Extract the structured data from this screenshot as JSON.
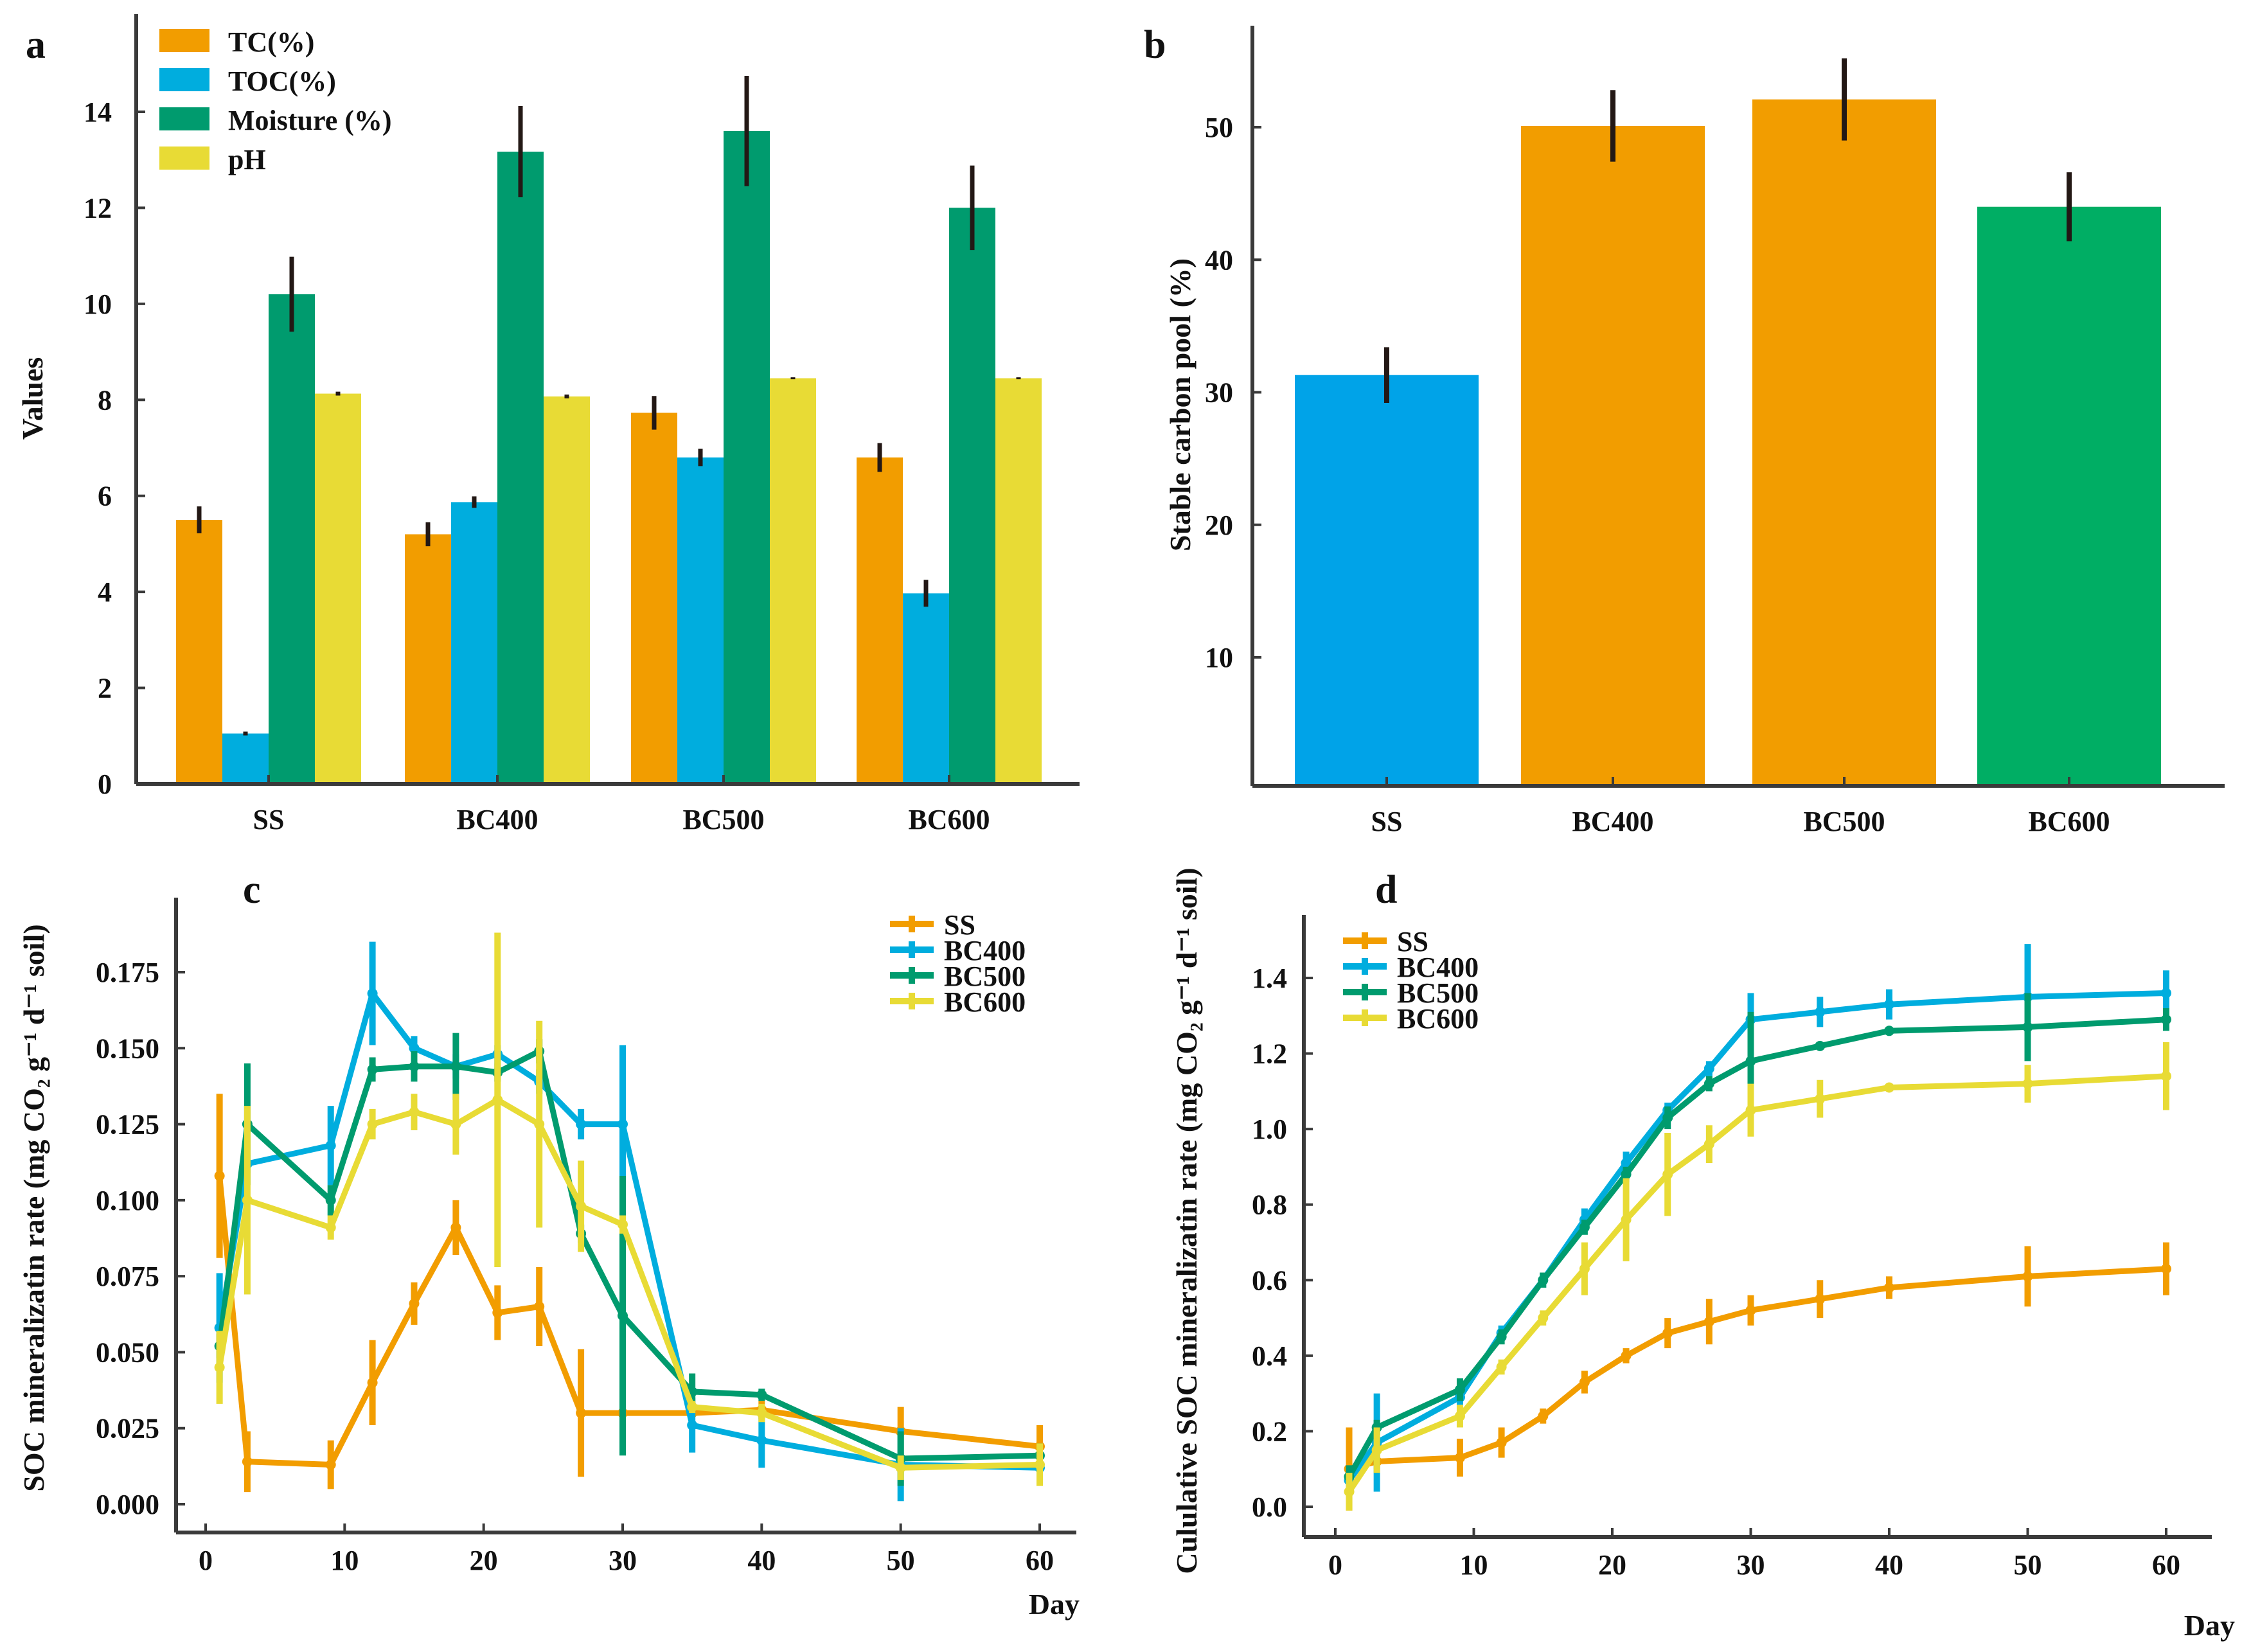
{
  "chart_data": [
    {
      "id": "a",
      "type": "bar",
      "panel_label": "a",
      "title": "",
      "xlabel": "",
      "ylabel": "Values",
      "ylim": [
        0,
        15.5
      ],
      "yticks": [
        0,
        2,
        4,
        6,
        8,
        10,
        12,
        14
      ],
      "categories": [
        "SS",
        "BC400",
        "BC500",
        "BC600"
      ],
      "legend_position": "top-left",
      "series": [
        {
          "name": "TC(%)",
          "color": "#F29D00",
          "values": [
            5.5,
            5.2,
            7.73,
            6.8
          ],
          "errors": [
            0.28,
            0.25,
            0.35,
            0.3
          ]
        },
        {
          "name": "TOC(%)",
          "color": "#00ADDE",
          "values": [
            1.05,
            5.87,
            6.8,
            3.97
          ],
          "errors": [
            0.04,
            0.12,
            0.18,
            0.28
          ]
        },
        {
          "name": "Moisture (%)",
          "color": "#009B6E",
          "values": [
            10.2,
            13.17,
            13.6,
            12.0
          ],
          "errors": [
            0.78,
            0.95,
            1.15,
            0.88
          ]
        },
        {
          "name": "pH",
          "color": "#E8DB35",
          "values": [
            8.13,
            8.07,
            8.45,
            8.45
          ],
          "errors": [
            0.04,
            0.04,
            0.02,
            0.02
          ]
        }
      ]
    },
    {
      "id": "b",
      "type": "bar",
      "panel_label": "b",
      "title": "",
      "xlabel": "",
      "ylabel": "Stable carbon pool (%)",
      "ylim": [
        0,
        57
      ],
      "yticks": [
        10,
        20,
        30,
        40,
        50
      ],
      "categories": [
        "SS",
        "BC400",
        "BC500",
        "BC600"
      ],
      "values": [
        31.3,
        50.1,
        52.1,
        44.0
      ],
      "errors": [
        2.1,
        2.7,
        3.1,
        2.6
      ],
      "colors": [
        "#00A3E8",
        "#F29D00",
        "#F29D00",
        "#00AE64"
      ]
    },
    {
      "id": "c",
      "type": "line",
      "panel_label": "c",
      "title": "",
      "xlabel": "Day",
      "ylabel": "SOC mineralizatin rate (mg CO₂ g⁻¹ d⁻¹ soil)",
      "xlim": [
        -1.5,
        63
      ],
      "ylim": [
        -0.009,
        0.197
      ],
      "xticks": [
        0,
        10,
        20,
        30,
        40,
        50,
        60
      ],
      "yticks": [
        0.0,
        0.025,
        0.05,
        0.075,
        0.1,
        0.125,
        0.15,
        0.175
      ],
      "ytick_labels": [
        "0.000",
        "0.025",
        "0.050",
        "0.075",
        "0.100",
        "0.125",
        "0.150",
        "0.175"
      ],
      "legend_position": "top-right",
      "x": [
        1,
        3,
        9,
        12,
        15,
        18,
        21,
        24,
        27,
        30,
        35,
        40,
        50,
        60
      ],
      "series": [
        {
          "name": "SS",
          "color": "#F29D00",
          "values": [
            0.108,
            0.014,
            0.013,
            0.04,
            0.066,
            0.091,
            0.063,
            0.065,
            0.03,
            0.03,
            0.03,
            0.031,
            0.024,
            0.019
          ],
          "errors": [
            0.027,
            0.01,
            0.008,
            0.014,
            0.007,
            0.009,
            0.009,
            0.013,
            0.021,
            0.0,
            0.001,
            0.003,
            0.008,
            0.007
          ]
        },
        {
          "name": "BC400",
          "color": "#00ADDE",
          "values": [
            0.058,
            0.112,
            0.118,
            0.168,
            0.15,
            0.144,
            0.148,
            0.139,
            0.125,
            0.125,
            0.026,
            0.021,
            0.013,
            0.012
          ],
          "errors": [
            0.018,
            0.003,
            0.013,
            0.017,
            0.004,
            0.004,
            0.003,
            0.004,
            0.005,
            0.026,
            0.009,
            0.009,
            0.012,
            0.003
          ]
        },
        {
          "name": "BC500",
          "color": "#009B6E",
          "values": [
            0.052,
            0.125,
            0.1,
            0.143,
            0.144,
            0.144,
            0.142,
            0.149,
            0.089,
            0.062,
            0.037,
            0.036,
            0.015,
            0.016
          ],
          "errors": [
            0.004,
            0.02,
            0.005,
            0.004,
            0.005,
            0.011,
            0.003,
            0.004,
            0.003,
            0.046,
            0.006,
            0.002,
            0.009,
            0.004
          ]
        },
        {
          "name": "BC600",
          "color": "#E8DB35",
          "values": [
            0.045,
            0.1,
            0.091,
            0.125,
            0.129,
            0.125,
            0.133,
            0.125,
            0.098,
            0.092,
            0.032,
            0.03,
            0.012,
            0.013
          ],
          "errors": [
            0.012,
            0.031,
            0.004,
            0.005,
            0.006,
            0.01,
            0.055,
            0.034,
            0.015,
            0.003,
            0.002,
            0.003,
            0.004,
            0.007
          ]
        }
      ]
    },
    {
      "id": "d",
      "type": "line",
      "panel_label": "d",
      "title": "",
      "xlabel": "Day",
      "ylabel": "Cululative SOC mineralizatin rate (mg CO₂ g⁻¹ d⁻¹ soil)",
      "xlim": [
        -1.5,
        63
      ],
      "ylim": [
        -0.07,
        1.56
      ],
      "xticks": [
        0,
        10,
        20,
        30,
        40,
        50,
        60
      ],
      "yticks": [
        0.0,
        0.2,
        0.4,
        0.6,
        0.8,
        1.0,
        1.2,
        1.4
      ],
      "ytick_labels": [
        "0.0",
        "0.2",
        "0.4",
        "0.6",
        "0.8",
        "1.0",
        "1.2",
        "1.4"
      ],
      "legend_position": "top-left",
      "x": [
        1,
        3,
        9,
        12,
        15,
        18,
        21,
        24,
        27,
        30,
        35,
        40,
        50,
        60
      ],
      "series": [
        {
          "name": "SS",
          "color": "#F29D00",
          "values": [
            0.1,
            0.12,
            0.13,
            0.17,
            0.24,
            0.33,
            0.4,
            0.46,
            0.49,
            0.52,
            0.55,
            0.58,
            0.61,
            0.63
          ],
          "errors": [
            0.11,
            0.02,
            0.05,
            0.04,
            0.02,
            0.03,
            0.02,
            0.04,
            0.06,
            0.04,
            0.05,
            0.03,
            0.08,
            0.07
          ]
        },
        {
          "name": "BC400",
          "color": "#00ADDE",
          "values": [
            0.07,
            0.17,
            0.29,
            0.46,
            0.6,
            0.76,
            0.91,
            1.05,
            1.16,
            1.29,
            1.31,
            1.33,
            1.35,
            1.36
          ],
          "errors": [
            0.02,
            0.13,
            0.02,
            0.02,
            0.02,
            0.03,
            0.03,
            0.02,
            0.02,
            0.07,
            0.04,
            0.04,
            0.14,
            0.06
          ]
        },
        {
          "name": "BC500",
          "color": "#009B6E",
          "values": [
            0.08,
            0.21,
            0.31,
            0.45,
            0.6,
            0.74,
            0.88,
            1.03,
            1.12,
            1.18,
            1.22,
            1.26,
            1.27,
            1.29
          ],
          "errors": [
            0.03,
            0.02,
            0.03,
            0.02,
            0.02,
            0.02,
            0.02,
            0.03,
            0.02,
            0.13,
            0.01,
            0.01,
            0.09,
            0.03
          ]
        },
        {
          "name": "BC600",
          "color": "#E8DB35",
          "values": [
            0.04,
            0.15,
            0.24,
            0.37,
            0.5,
            0.63,
            0.76,
            0.88,
            0.96,
            1.05,
            1.08,
            1.11,
            1.12,
            1.14
          ],
          "errors": [
            0.05,
            0.06,
            0.03,
            0.02,
            0.02,
            0.07,
            0.11,
            0.11,
            0.05,
            0.07,
            0.05,
            0.01,
            0.05,
            0.09
          ]
        }
      ]
    }
  ]
}
